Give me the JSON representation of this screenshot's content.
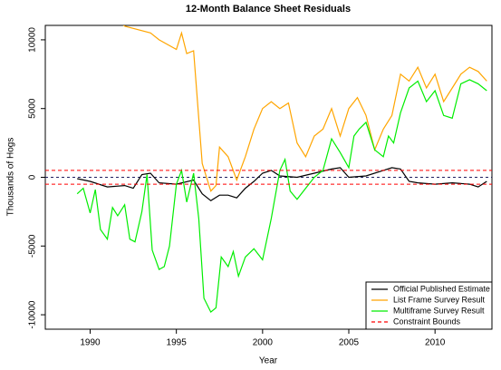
{
  "chart_data": {
    "type": "line",
    "title": "12-Month Balance Sheet Residuals",
    "x_label": "Year",
    "y_label": "Thousands of Hogs",
    "xlim": [
      1987.4,
      2013.3
    ],
    "ylim": [
      -11050,
      11050
    ],
    "xticks": [
      1990,
      1995,
      2000,
      2005,
      2010
    ],
    "yticks": [
      -10000,
      -5000,
      0,
      5000,
      10000
    ],
    "legend": "bottomright",
    "reference_line": {
      "value": 0,
      "color": "#1f1f5f"
    },
    "bounds": {
      "name": "Constraint Bounds",
      "color": "#ff0000",
      "values": [
        500,
        -500
      ]
    },
    "series": [
      {
        "name": "Official Published Estimate",
        "color": "#000000",
        "x": [
          1989.25,
          1990,
          1991,
          1992,
          1992.5,
          1993,
          1993.5,
          1994,
          1995,
          1996,
          1996.5,
          1997,
          1997.5,
          1998,
          1998.5,
          1999,
          1999.5,
          2000,
          2000.5,
          2001,
          2002,
          2003,
          2004,
          2004.5,
          2005,
          2006,
          2007,
          2007.5,
          2008,
          2008.5,
          2009,
          2010,
          2011,
          2012,
          2012.5,
          2013
        ],
        "values": [
          -100,
          -300,
          -700,
          -600,
          -800,
          200,
          300,
          -400,
          -500,
          -200,
          -1200,
          -1700,
          -1300,
          -1300,
          -1500,
          -800,
          -300,
          300,
          500,
          100,
          0,
          300,
          600,
          700,
          0,
          100,
          500,
          700,
          600,
          -300,
          -400,
          -500,
          -400,
          -500,
          -700,
          -300
        ]
      },
      {
        "name": "List Frame Survey Result",
        "color": "#ffa500",
        "x": [
          1991.5,
          1992,
          1993.5,
          1994,
          1995,
          1995.3,
          1995.6,
          1996,
          1996.5,
          1997,
          1997.3,
          1997.5,
          1998,
          1998.5,
          1999,
          1999.5,
          2000,
          2000.5,
          2001,
          2001.5,
          2002,
          2002.5,
          2003,
          2003.5,
          2004,
          2004.5,
          2005,
          2005.5,
          2006,
          2006.5,
          2007,
          2007.5,
          2008,
          2008.5,
          2009,
          2009.5,
          2010,
          2010.5,
          2011,
          2011.5,
          2012,
          2012.5,
          2013
        ],
        "values": [
          11500,
          11000,
          10500,
          10000,
          9300,
          10500,
          9000,
          9200,
          1000,
          -1000,
          -600,
          2200,
          1500,
          -200,
          1500,
          3500,
          5000,
          5500,
          5000,
          5400,
          2500,
          1500,
          3000,
          3500,
          5000,
          3000,
          5000,
          5800,
          4500,
          2000,
          3500,
          4500,
          7500,
          7000,
          8000,
          6500,
          7500,
          5500,
          6500,
          7500,
          8000,
          7700,
          7000
        ]
      },
      {
        "name": "Multiframe Survey Result",
        "color": "#00ee00",
        "x": [
          1989.25,
          1989.6,
          1990,
          1990.3,
          1990.6,
          1991,
          1991.3,
          1991.6,
          1992,
          1992.3,
          1992.6,
          1993,
          1993.3,
          1993.6,
          1994,
          1994.3,
          1994.6,
          1995,
          1995.3,
          1995.6,
          1996,
          1996.3,
          1996.6,
          1997,
          1997.3,
          1997.6,
          1998,
          1998.3,
          1998.6,
          1999,
          1999.5,
          2000,
          2000.5,
          2001,
          2001.3,
          2001.6,
          2002,
          2002.5,
          2003,
          2003.5,
          2004,
          2004.5,
          2005,
          2005.3,
          2005.6,
          2006,
          2006.5,
          2007,
          2007.3,
          2007.6,
          2008,
          2008.5,
          2009,
          2009.5,
          2010,
          2010.5,
          2011,
          2011.5,
          2012,
          2012.5,
          2013
        ],
        "values": [
          -1200,
          -800,
          -2600,
          -900,
          -3800,
          -4500,
          -2200,
          -2800,
          -2000,
          -4500,
          -4700,
          -2500,
          200,
          -5300,
          -6700,
          -6500,
          -5000,
          -500,
          500,
          -1800,
          300,
          -3000,
          -8800,
          -9800,
          -9500,
          -5800,
          -6500,
          -5400,
          -7200,
          -5800,
          -5200,
          -6000,
          -3000,
          500,
          1300,
          -1000,
          -1600,
          -800,
          0,
          500,
          2800,
          1800,
          700,
          3000,
          3500,
          4000,
          2000,
          1500,
          3000,
          2500,
          4700,
          6500,
          7000,
          5500,
          6300,
          4500,
          4300,
          6800,
          7100,
          6800,
          6300
        ]
      }
    ]
  }
}
